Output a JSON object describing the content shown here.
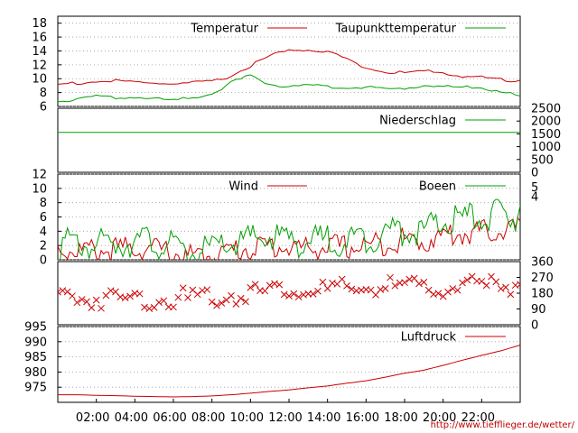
{
  "x_tick_labels": [
    "02:00",
    "04:00",
    "06:00",
    "08:00",
    "10:00",
    "12:00",
    "14:00",
    "16:00",
    "18:00",
    "20:00",
    "22:00"
  ],
  "footer_url": "http://www.tiefflieger.de/wetter/",
  "colors": {
    "red": "#cc0000",
    "green": "#00a000",
    "grid": "#999999"
  },
  "chart_data": [
    {
      "type": "line",
      "xlim": [
        0,
        24
      ],
      "ylim": [
        6,
        19
      ],
      "y_ticks": [
        6,
        8,
        10,
        12,
        14,
        16,
        18
      ],
      "grid": true,
      "legend_position": "top-right",
      "series": [
        {
          "name": "Temperatur",
          "color": "#cc0000",
          "x": [
            0,
            1,
            2,
            3,
            4,
            5,
            6,
            7,
            8,
            9,
            10,
            11,
            12,
            13,
            14,
            15,
            16,
            17,
            18,
            19,
            20,
            21,
            22,
            23,
            24
          ],
          "values": [
            9.3,
            9.5,
            9.7,
            9.8,
            9.6,
            9.5,
            9.4,
            9.5,
            9.7,
            10.5,
            12.0,
            13.4,
            14.2,
            14.3,
            14.0,
            13.0,
            11.7,
            11.0,
            11.0,
            11.2,
            11.0,
            10.5,
            10.3,
            10.0,
            9.8
          ]
        },
        {
          "name": "Taupunkttemperatur",
          "color": "#00a000",
          "x": [
            0,
            1,
            2,
            3,
            4,
            5,
            6,
            7,
            8,
            9,
            10,
            11,
            12,
            13,
            14,
            15,
            16,
            17,
            18,
            19,
            20,
            21,
            22,
            23,
            24
          ],
          "values": [
            6.8,
            7.3,
            7.6,
            7.3,
            7.5,
            7.2,
            7.0,
            7.4,
            8.0,
            9.5,
            10.6,
            9.3,
            9.0,
            9.1,
            9.0,
            8.8,
            8.9,
            8.6,
            8.7,
            9.2,
            9.0,
            8.9,
            8.8,
            8.3,
            7.5
          ]
        }
      ]
    },
    {
      "type": "line",
      "xlim": [
        0,
        24
      ],
      "ylim": [
        0,
        2500
      ],
      "y_ticks": [
        0,
        500,
        1000,
        1500,
        2000,
        2500
      ],
      "grid": false,
      "legend_position": "top-right",
      "series": [
        {
          "name": "Niederschlag",
          "color": "#00a000",
          "x": [
            0,
            24
          ],
          "values": [
            1560,
            1560
          ]
        }
      ]
    },
    {
      "type": "line",
      "xlim": [
        0,
        24
      ],
      "ylim": [
        0,
        12
      ],
      "y_ticks": [
        0,
        2,
        4,
        6,
        8,
        10,
        12
      ],
      "right_ticks": [
        4,
        5
      ],
      "grid": true,
      "legend_position": "top-right",
      "series": [
        {
          "name": "Wind",
          "color": "#cc0000",
          "x": [
            0,
            1,
            2,
            3,
            4,
            5,
            6,
            7,
            8,
            9,
            10,
            11,
            12,
            13,
            14,
            15,
            16,
            17,
            18,
            19,
            20,
            21,
            22,
            23,
            24
          ],
          "values": [
            2.5,
            2.2,
            2.2,
            2.3,
            2.6,
            2.4,
            1.8,
            1.3,
            1.5,
            2.2,
            2.6,
            2.8,
            2.7,
            2.4,
            2.8,
            2.6,
            2.9,
            3.3,
            3.7,
            3.4,
            4.3,
            4.6,
            4.8,
            5.1,
            5.4
          ]
        },
        {
          "name": "Boeen",
          "color": "#00a000",
          "x": [
            0,
            1,
            2,
            3,
            4,
            5,
            6,
            7,
            8,
            9,
            10,
            11,
            12,
            13,
            14,
            15,
            16,
            17,
            18,
            19,
            20,
            21,
            22,
            23,
            24
          ],
          "values": [
            3.5,
            3.3,
            3.3,
            3.5,
            4.0,
            3.7,
            2.8,
            2.2,
            2.6,
            3.4,
            3.9,
            4.4,
            4.1,
            3.6,
            4.0,
            3.8,
            4.3,
            5.0,
            5.5,
            5.1,
            6.4,
            6.9,
            7.1,
            7.4,
            7.6
          ]
        }
      ]
    },
    {
      "type": "scatter",
      "xlim": [
        0,
        24
      ],
      "ylim": [
        0,
        360
      ],
      "y_ticks": [
        0,
        90,
        180,
        270,
        360
      ],
      "grid": false,
      "series": [
        {
          "color": "#cc0000",
          "x": [
            0,
            1,
            2,
            3,
            4,
            5,
            6,
            7,
            8,
            9,
            10,
            11,
            12,
            13,
            14,
            15,
            16,
            17,
            18,
            19,
            20,
            21,
            22,
            23,
            24
          ],
          "values": [
            200,
            180,
            180,
            180,
            180,
            180,
            180,
            180,
            190,
            200,
            220,
            240,
            230,
            230,
            230,
            230,
            240,
            250,
            240,
            240,
            250,
            250,
            250,
            260,
            260
          ]
        }
      ]
    },
    {
      "type": "line",
      "xlim": [
        0,
        24
      ],
      "ylim": [
        970,
        995
      ],
      "y_ticks": [
        975,
        980,
        985,
        990,
        995
      ],
      "grid": true,
      "legend_position": "top-right",
      "series": [
        {
          "name": "Luftdruck",
          "color": "#cc0000",
          "x": [
            0,
            1,
            2,
            3,
            4,
            5,
            6,
            7,
            8,
            9,
            10,
            11,
            12,
            13,
            14,
            15,
            16,
            17,
            18,
            19,
            20,
            21,
            22,
            23,
            24
          ],
          "values": [
            972.5,
            972.5,
            972.3,
            972.2,
            972.0,
            971.9,
            971.8,
            971.9,
            972.1,
            972.5,
            973.0,
            973.6,
            974.1,
            974.8,
            975.4,
            976.3,
            977.1,
            978.3,
            979.6,
            980.6,
            982.2,
            983.9,
            985.5,
            987.0,
            988.9
          ]
        }
      ]
    }
  ]
}
